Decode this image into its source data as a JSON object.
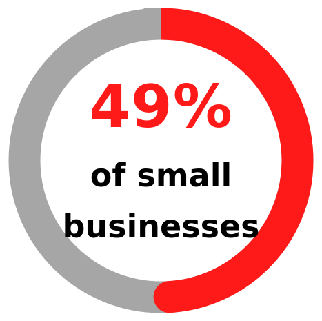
{
  "chart_data": {
    "type": "pie",
    "style": "donut",
    "values": [
      49,
      51
    ],
    "colors": [
      "#ff1a1a",
      "#a6a6a6"
    ],
    "center_value": "49%",
    "center_text": [
      "of small",
      "businesses"
    ]
  }
}
